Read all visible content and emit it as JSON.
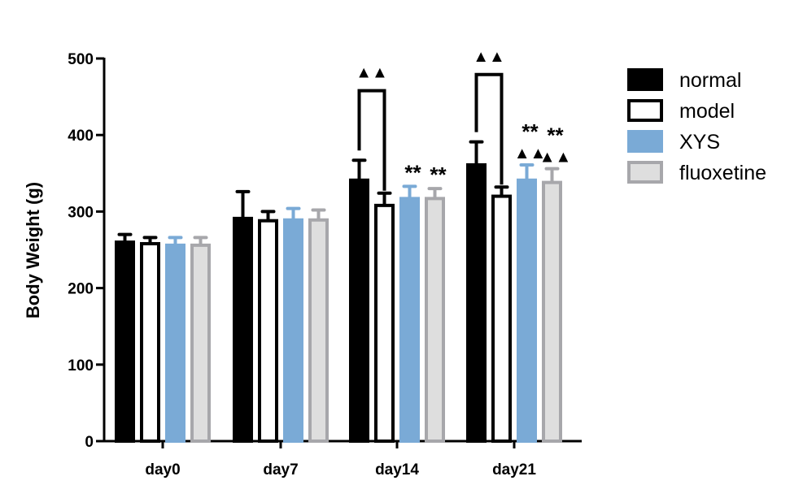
{
  "chart_data": {
    "type": "bar",
    "ylabel": "Body Weight (g)",
    "xlabel": "",
    "ylim": [
      0,
      500
    ],
    "yticks": [
      0,
      100,
      200,
      300,
      400,
      500
    ],
    "categories": [
      "day0",
      "day7",
      "day14",
      "day21"
    ],
    "legend_position": "right",
    "grid": false,
    "series": [
      {
        "name": "normal",
        "fill": "#000000",
        "stroke": "#000000",
        "values": [
          260,
          291,
          341,
          361
        ],
        "errors": [
          10,
          35,
          26,
          30
        ]
      },
      {
        "name": "model",
        "fill": "#ffffff",
        "stroke": "#000000",
        "values": [
          258,
          288,
          308,
          320
        ],
        "errors": [
          8,
          12,
          16,
          12
        ]
      },
      {
        "name": "XYS",
        "fill": "#7aaad6",
        "stroke": "#7aaad6",
        "values": [
          256,
          289,
          317,
          341
        ],
        "errors": [
          10,
          15,
          16,
          20
        ]
      },
      {
        "name": "fluoxetine",
        "fill": "#dedede",
        "stroke": "#a7a7ab",
        "values": [
          256,
          289,
          317,
          338
        ],
        "errors": [
          10,
          13,
          13,
          18
        ]
      }
    ],
    "annotations": [
      {
        "category": "day14",
        "type": "bracket",
        "between": [
          "normal",
          "model"
        ],
        "label": "▲▲",
        "y": 458
      },
      {
        "category": "day21",
        "type": "bracket",
        "between": [
          "normal",
          "model"
        ],
        "label": "▲▲",
        "y": 479
      },
      {
        "category": "day14",
        "series": "XYS",
        "label": "**"
      },
      {
        "category": "day14",
        "series": "fluoxetine",
        "label": "**"
      },
      {
        "category": "day21",
        "series": "XYS",
        "label": "**\n▲▲"
      },
      {
        "category": "day21",
        "series": "fluoxetine",
        "label": "**\n▲▲"
      }
    ]
  }
}
